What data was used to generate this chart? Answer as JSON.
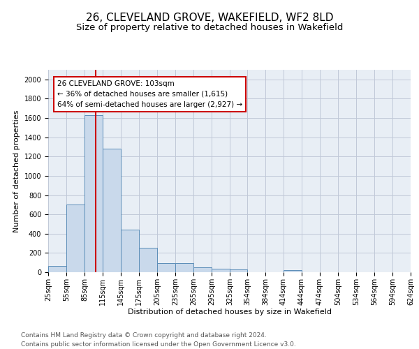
{
  "title": "26, CLEVELAND GROVE, WAKEFIELD, WF2 8LD",
  "subtitle": "Size of property relative to detached houses in Wakefield",
  "xlabel": "Distribution of detached houses by size in Wakefield",
  "ylabel": "Number of detached properties",
  "footer_line1": "Contains HM Land Registry data © Crown copyright and database right 2024.",
  "footer_line2": "Contains public sector information licensed under the Open Government Licence v3.0.",
  "bar_left_edges": [
    25,
    55,
    85,
    115,
    145,
    175,
    205,
    235,
    265,
    295,
    325,
    354,
    384,
    414,
    444,
    474,
    504,
    534,
    564,
    594
  ],
  "bar_widths": [
    30,
    30,
    30,
    30,
    30,
    30,
    30,
    30,
    30,
    30,
    29,
    30,
    30,
    30,
    30,
    30,
    30,
    30,
    30,
    30
  ],
  "bar_heights": [
    68,
    700,
    1630,
    1280,
    440,
    250,
    95,
    95,
    50,
    35,
    30,
    0,
    0,
    20,
    0,
    0,
    0,
    0,
    0,
    0
  ],
  "bar_color": "#c9d9eb",
  "bar_edge_color": "#5b8db8",
  "grid_color": "#c0c8d8",
  "bg_color": "#e8eef5",
  "property_sqm": 103,
  "red_line_color": "#cc0000",
  "annotation_text": "26 CLEVELAND GROVE: 103sqm\n← 36% of detached houses are smaller (1,615)\n64% of semi-detached houses are larger (2,927) →",
  "annotation_box_color": "#ffffff",
  "annotation_box_edge": "#cc0000",
  "ylim": [
    0,
    2100
  ],
  "yticks": [
    0,
    200,
    400,
    600,
    800,
    1000,
    1200,
    1400,
    1600,
    1800,
    2000
  ],
  "xtick_labels": [
    "25sqm",
    "55sqm",
    "85sqm",
    "115sqm",
    "145sqm",
    "175sqm",
    "205sqm",
    "235sqm",
    "265sqm",
    "295sqm",
    "325sqm",
    "354sqm",
    "384sqm",
    "414sqm",
    "444sqm",
    "474sqm",
    "504sqm",
    "534sqm",
    "564sqm",
    "594sqm",
    "624sqm"
  ],
  "title_fontsize": 11,
  "subtitle_fontsize": 9.5,
  "axis_label_fontsize": 8,
  "tick_fontsize": 7,
  "footer_fontsize": 6.5,
  "annotation_fontsize": 7.5
}
